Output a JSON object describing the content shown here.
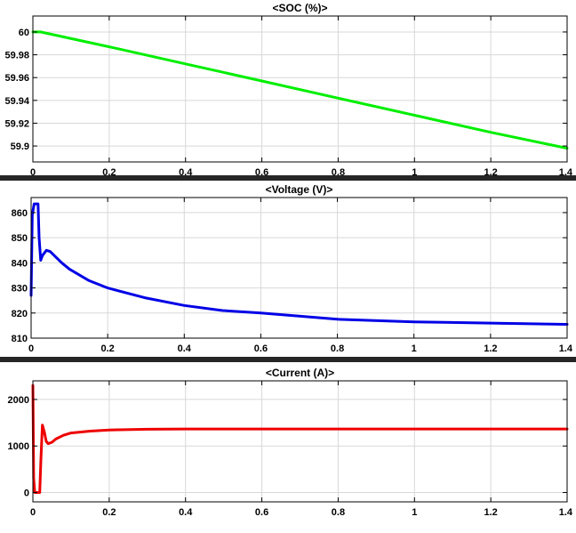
{
  "chart_data": [
    {
      "type": "line",
      "title": "<SOC (%)>",
      "xlim": [
        0,
        1.4
      ],
      "ylim": [
        59.886,
        60.014
      ],
      "xticks": [
        0,
        0.2,
        0.4,
        0.6,
        0.8,
        1,
        1.2,
        1.4
      ],
      "yticks": [
        59.9,
        59.92,
        59.94,
        59.96,
        59.98,
        60
      ],
      "grid": true,
      "series": [
        {
          "color": "#00ee00",
          "x": [
            0,
            0.02,
            0.2,
            0.4,
            0.6,
            0.8,
            1.0,
            1.2,
            1.4
          ],
          "y": [
            60.0,
            60.0,
            59.987,
            59.972,
            59.957,
            59.942,
            59.927,
            59.912,
            59.898
          ]
        }
      ]
    },
    {
      "type": "line",
      "title": "<Voltage (V)>",
      "xlim": [
        0,
        1.4
      ],
      "ylim": [
        810,
        866
      ],
      "xticks": [
        0,
        0.2,
        0.4,
        0.6,
        0.8,
        1,
        1.2,
        1.4
      ],
      "yticks": [
        810,
        820,
        830,
        840,
        850,
        860
      ],
      "grid": true,
      "series": [
        {
          "color": "#0000e6",
          "x": [
            0,
            0.003,
            0.008,
            0.018,
            0.021,
            0.025,
            0.03,
            0.04,
            0.05,
            0.06,
            0.08,
            0.1,
            0.15,
            0.2,
            0.3,
            0.4,
            0.5,
            0.6,
            0.8,
            1.0,
            1.2,
            1.4
          ],
          "y": [
            827,
            859,
            863.5,
            863.5,
            850,
            841,
            843,
            845,
            844.5,
            843,
            840,
            837.5,
            833,
            830,
            826,
            823,
            821,
            820,
            817.5,
            816.5,
            816,
            815.5
          ]
        }
      ]
    },
    {
      "type": "line",
      "title": "<Current (A)>",
      "xlim": [
        0,
        1.4
      ],
      "ylim": [
        -200,
        2400
      ],
      "xticks": [
        0,
        0.2,
        0.4,
        0.6,
        0.8,
        1,
        1.2,
        1.4
      ],
      "yticks": [
        0,
        1000,
        2000
      ],
      "grid": true,
      "series": [
        {
          "color": "#ee0000",
          "x": [
            0,
            0.002,
            0.005,
            0.018,
            0.021,
            0.025,
            0.03,
            0.035,
            0.04,
            0.05,
            0.06,
            0.08,
            0.1,
            0.15,
            0.2,
            0.3,
            0.4,
            0.6,
            0.8,
            1.0,
            1.2,
            1.4
          ],
          "y": [
            2300,
            300,
            0,
            0,
            700,
            1450,
            1300,
            1100,
            1050,
            1080,
            1150,
            1230,
            1280,
            1320,
            1345,
            1360,
            1365,
            1365,
            1365,
            1365,
            1365,
            1365
          ]
        }
      ]
    }
  ]
}
